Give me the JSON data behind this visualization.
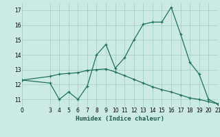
{
  "xlabel": "Humidex (Indice chaleur)",
  "background_color": "#cceae4",
  "grid_color": "#aad4cc",
  "line_color": "#1e6e5e",
  "xlim": [
    0,
    21
  ],
  "ylim": [
    10.5,
    17.5
  ],
  "yticks": [
    11,
    12,
    13,
    14,
    15,
    16,
    17
  ],
  "xticks": [
    0,
    3,
    4,
    5,
    6,
    7,
    8,
    9,
    10,
    11,
    12,
    13,
    14,
    15,
    16,
    17,
    18,
    19,
    20,
    21
  ],
  "line1_x": [
    0,
    3,
    4,
    5,
    6,
    7,
    8,
    9,
    10,
    11,
    12,
    13,
    14,
    15,
    16,
    17,
    18,
    19,
    20,
    21
  ],
  "line1_y": [
    12.3,
    12.1,
    11.0,
    11.5,
    11.0,
    11.9,
    14.0,
    14.7,
    13.1,
    13.8,
    15.0,
    16.05,
    16.2,
    16.2,
    17.2,
    15.4,
    13.5,
    12.7,
    11.0,
    10.7
  ],
  "line2_x": [
    0,
    3,
    4,
    5,
    6,
    7,
    8,
    9,
    10,
    11,
    12,
    13,
    14,
    15,
    16,
    17,
    18,
    19,
    20,
    21
  ],
  "line2_y": [
    12.3,
    12.55,
    12.7,
    12.75,
    12.8,
    12.95,
    13.0,
    13.05,
    12.85,
    12.6,
    12.35,
    12.1,
    11.85,
    11.65,
    11.5,
    11.3,
    11.1,
    11.0,
    10.85,
    10.7
  ]
}
